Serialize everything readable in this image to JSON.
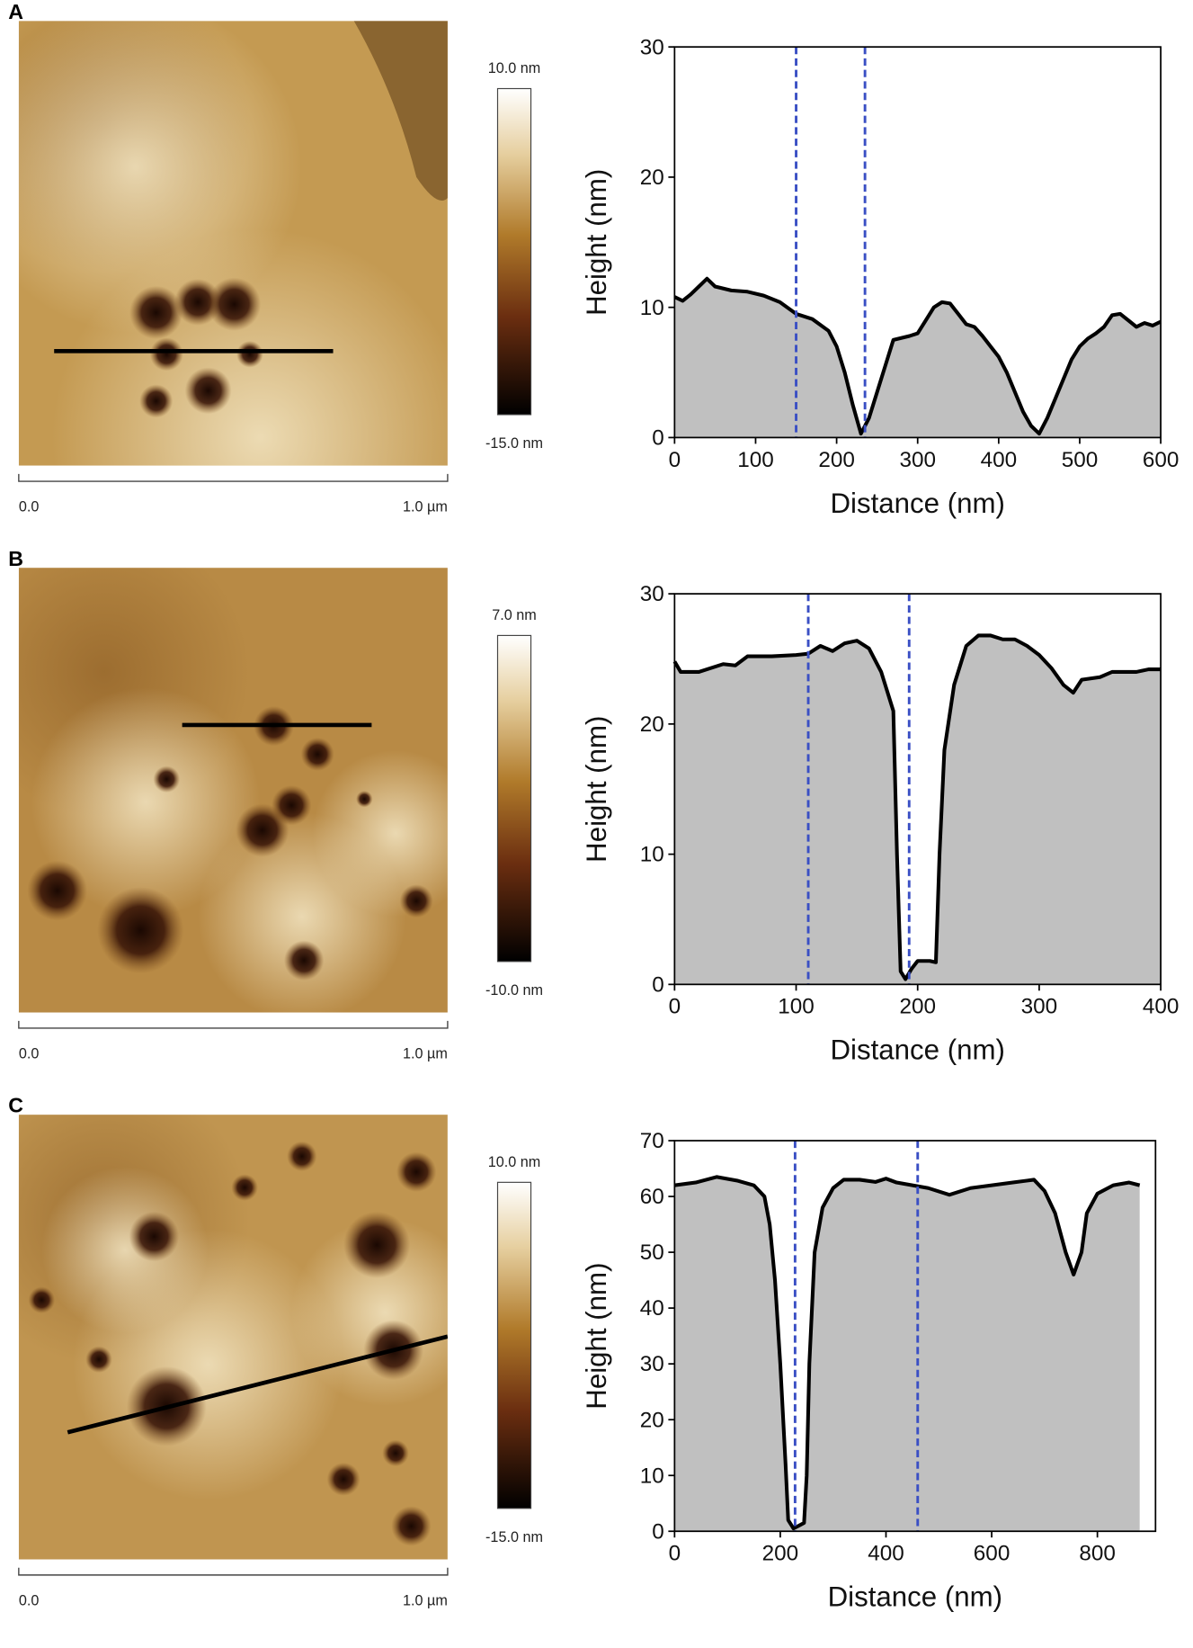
{
  "panels": [
    {
      "label": "A",
      "scale_max": "10.0 nm",
      "scale_min": "-15.0 nm",
      "scale_start": "0.0",
      "scale_end": "1.0 µm"
    },
    {
      "label": "B",
      "scale_max": "7.0 nm",
      "scale_min": "-10.0 nm",
      "scale_start": "0.0",
      "scale_end": "1.0 µm"
    },
    {
      "label": "C",
      "scale_max": "10.0 nm",
      "scale_min": "-15.0 nm",
      "scale_start": "0.0",
      "scale_end": "1.0 µm"
    }
  ],
  "chart_data": [
    {
      "type": "area",
      "xlabel": "Distance (nm)",
      "ylabel": "Height (nm)",
      "x": [
        0,
        10,
        20,
        30,
        40,
        50,
        70,
        90,
        110,
        130,
        150,
        170,
        190,
        200,
        210,
        220,
        230,
        240,
        250,
        260,
        270,
        290,
        300,
        310,
        320,
        330,
        340,
        350,
        360,
        370,
        380,
        390,
        400,
        410,
        420,
        430,
        440,
        450,
        460,
        470,
        480,
        490,
        500,
        510,
        520,
        530,
        540,
        550,
        560,
        570,
        580,
        590,
        600
      ],
      "values": [
        10.8,
        10.5,
        11,
        11.6,
        12.2,
        11.6,
        11.3,
        11.2,
        10.9,
        10.4,
        9.5,
        9.1,
        8.2,
        7,
        5,
        2.5,
        0.3,
        1.5,
        3.5,
        5.5,
        7.5,
        7.8,
        8,
        9,
        10,
        10.4,
        10.3,
        9.5,
        8.7,
        8.5,
        7.8,
        7,
        6.2,
        5,
        3.5,
        2,
        0.9,
        0.3,
        1.5,
        3,
        4.5,
        6,
        7,
        7.6,
        8,
        8.5,
        9.4,
        9.5,
        9,
        8.5,
        8.8,
        8.6,
        8.9
      ],
      "color": "#c0c0c0",
      "line_color": "#000000",
      "markers": [
        150,
        235
      ],
      "marker_color": "#3a4fc4",
      "xlim": [
        0,
        600
      ],
      "ylim": [
        0,
        30
      ],
      "xticks": [
        0,
        100,
        200,
        300,
        400,
        500,
        600
      ],
      "yticks": [
        0,
        10,
        20,
        30
      ]
    },
    {
      "type": "area",
      "xlabel": "Distance (nm)",
      "ylabel": "Height (nm)",
      "x": [
        0,
        5,
        20,
        40,
        50,
        60,
        80,
        100,
        110,
        120,
        130,
        140,
        150,
        160,
        170,
        180,
        183,
        186,
        190,
        195,
        200,
        210,
        215,
        218,
        222,
        230,
        240,
        250,
        260,
        270,
        280,
        290,
        300,
        310,
        320,
        328,
        335,
        350,
        360,
        380,
        390,
        400
      ],
      "values": [
        24.8,
        24,
        24,
        24.6,
        24.5,
        25.2,
        25.2,
        25.3,
        25.4,
        26,
        25.6,
        26.2,
        26.4,
        25.8,
        24,
        21,
        10,
        1,
        0.4,
        1.2,
        1.8,
        1.8,
        1.7,
        10,
        18,
        23,
        26,
        26.8,
        26.8,
        26.5,
        26.5,
        26,
        25.3,
        24.3,
        23,
        22.4,
        23.4,
        23.6,
        24,
        24,
        24.2,
        24.2
      ],
      "color": "#c0c0c0",
      "line_color": "#000000",
      "markers": [
        110,
        193
      ],
      "marker_color": "#3a4fc4",
      "xlim": [
        0,
        400
      ],
      "ylim": [
        0,
        30
      ],
      "xticks": [
        0,
        100,
        200,
        300,
        400
      ],
      "yticks": [
        0,
        10,
        20,
        30
      ]
    },
    {
      "type": "area",
      "xlabel": "Distance (nm)",
      "ylabel": "Height (nm)",
      "x": [
        0,
        40,
        80,
        120,
        150,
        170,
        180,
        190,
        200,
        210,
        215,
        225,
        235,
        245,
        250,
        255,
        265,
        280,
        300,
        320,
        350,
        380,
        400,
        420,
        450,
        480,
        520,
        560,
        600,
        640,
        680,
        700,
        720,
        740,
        755,
        770,
        780,
        800,
        830,
        860,
        880
      ],
      "values": [
        62,
        62.5,
        63.5,
        62.8,
        62,
        60,
        55,
        45,
        30,
        12,
        2,
        0.5,
        1,
        1.5,
        10,
        30,
        50,
        58,
        61.5,
        63,
        63,
        62.6,
        63.2,
        62.5,
        62,
        61.5,
        60.3,
        61.5,
        62,
        62.5,
        63,
        61,
        57,
        50,
        46,
        50,
        57,
        60.5,
        62,
        62.5,
        62
      ],
      "color": "#c0c0c0",
      "line_color": "#000000",
      "markers": [
        228,
        460
      ],
      "marker_color": "#3a4fc4",
      "xlim": [
        0,
        910
      ],
      "ylim": [
        0,
        70
      ],
      "xticks": [
        0,
        200,
        400,
        600,
        800
      ],
      "yticks": [
        0,
        10,
        20,
        30,
        40,
        50,
        60,
        70
      ]
    }
  ]
}
